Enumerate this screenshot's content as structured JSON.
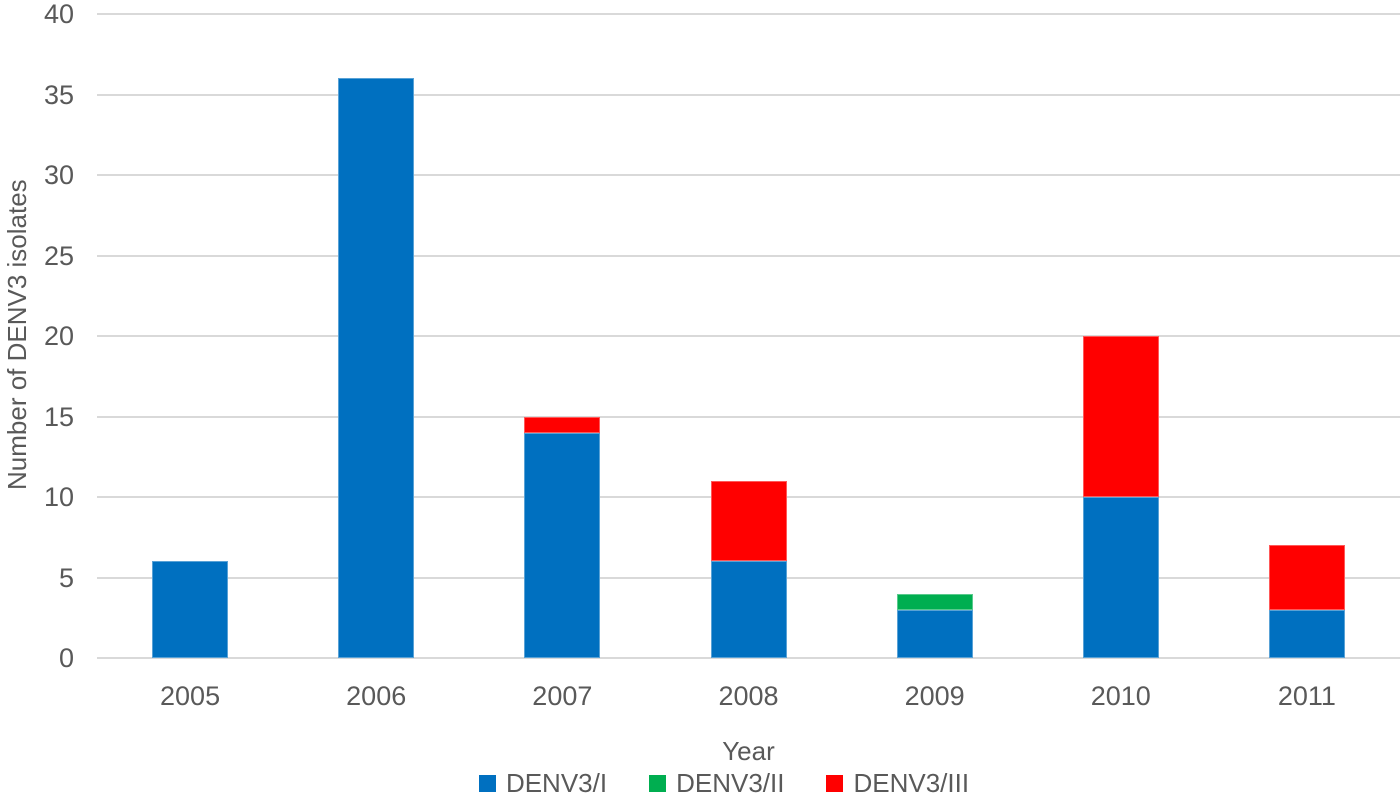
{
  "chart_data": {
    "type": "bar",
    "stacked": true,
    "title": "",
    "xlabel": "Year",
    "ylabel": "Number of DENV3 isolates",
    "categories": [
      "2005",
      "2006",
      "2007",
      "2008",
      "2009",
      "2010",
      "2011"
    ],
    "series": [
      {
        "name": "DENV3/I",
        "color": "#0070C0",
        "values": [
          6,
          36,
          14,
          6,
          3,
          10,
          3
        ]
      },
      {
        "name": "DENV3/II",
        "color": "#00AE50",
        "values": [
          0,
          0,
          0,
          0,
          1,
          0,
          0
        ]
      },
      {
        "name": "DENV3/III",
        "color": "#FF0000",
        "values": [
          0,
          0,
          1,
          5,
          0,
          10,
          4
        ]
      }
    ],
    "totals": [
      6,
      36,
      15,
      11,
      4,
      20,
      7
    ],
    "ylim": [
      0,
      40
    ],
    "yticks": [
      0,
      5,
      10,
      15,
      20,
      25,
      30,
      35,
      40
    ],
    "grid": true,
    "legend_position": "bottom"
  },
  "colors": {
    "background": "#FFFFFF",
    "text": "#595959",
    "gridline": "#D9D9D9"
  }
}
